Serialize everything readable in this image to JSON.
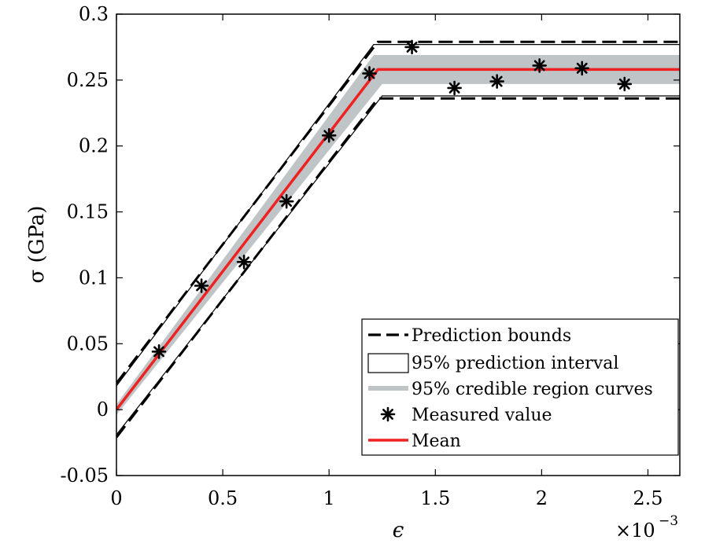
{
  "chart_data": {
    "type": "line",
    "xlabel": "ϵ",
    "ylabel": "σ (GPa)",
    "x_multiplier_label": "×10",
    "x_multiplier_exp": "−3",
    "xlim": [
      0,
      2.65
    ],
    "ylim": [
      -0.05,
      0.3
    ],
    "x_ticks": [
      0,
      0.5,
      1,
      1.5,
      2,
      2.5
    ],
    "x_tick_labels": [
      "0",
      "0.5",
      "1",
      "1.5",
      "2",
      "2.5"
    ],
    "y_ticks": [
      -0.05,
      0,
      0.05,
      0.1,
      0.15,
      0.2,
      0.25,
      0.3
    ],
    "y_tick_labels": [
      "-0.05",
      "0",
      "0.05",
      "0.1",
      "0.15",
      "0.2",
      "0.25",
      "0.3"
    ],
    "grid": false,
    "legend_position": "bottom-right",
    "colors": {
      "mean": "#ee2222",
      "credible_band": "#bfc4c7",
      "prediction_bounds": "#000000",
      "interval_edge": "#000000",
      "measured": "#000000"
    },
    "series": [
      {
        "name": "Prediction bounds",
        "style": "dashed",
        "upper": [
          [
            0,
            0.02
          ],
          [
            1.23,
            0.279
          ],
          [
            2.65,
            0.279
          ]
        ],
        "lower": [
          [
            0,
            -0.021
          ],
          [
            1.23,
            0.236
          ],
          [
            2.65,
            0.236
          ]
        ]
      },
      {
        "name": "95% prediction interval",
        "style": "thin-outline",
        "upper": [
          [
            0,
            0.018
          ],
          [
            1.21,
            0.277
          ],
          [
            2.65,
            0.277
          ]
        ],
        "lower": [
          [
            0,
            -0.019
          ],
          [
            1.25,
            0.238
          ],
          [
            2.65,
            0.238
          ]
        ]
      },
      {
        "name": "95% credible region curves",
        "style": "band",
        "upper": [
          [
            0,
            0.004
          ],
          [
            1.21,
            0.269
          ],
          [
            2.65,
            0.269
          ]
        ],
        "lower": [
          [
            0,
            -0.004
          ],
          [
            1.25,
            0.247
          ],
          [
            2.65,
            0.247
          ]
        ]
      },
      {
        "name": "Measured value",
        "style": "marker-asterisk",
        "points": [
          [
            0.2,
            0.044
          ],
          [
            0.4,
            0.094
          ],
          [
            0.6,
            0.112
          ],
          [
            0.8,
            0.158
          ],
          [
            1.0,
            0.208
          ],
          [
            1.19,
            0.255
          ],
          [
            1.39,
            0.275
          ],
          [
            1.59,
            0.244
          ],
          [
            1.79,
            0.249
          ],
          [
            1.99,
            0.261
          ],
          [
            2.19,
            0.259
          ],
          [
            2.39,
            0.247
          ]
        ]
      },
      {
        "name": "Mean",
        "style": "solid",
        "points": [
          [
            0,
            0
          ],
          [
            1.23,
            0.258
          ],
          [
            2.65,
            0.258
          ]
        ]
      }
    ],
    "legend": [
      {
        "key": "bounds",
        "label": "Prediction bounds"
      },
      {
        "key": "interval",
        "label": "95% prediction interval"
      },
      {
        "key": "credible",
        "label": "95% credible region curves"
      },
      {
        "key": "measured",
        "label": "Measured value"
      },
      {
        "key": "mean",
        "label": "Mean"
      }
    ]
  }
}
